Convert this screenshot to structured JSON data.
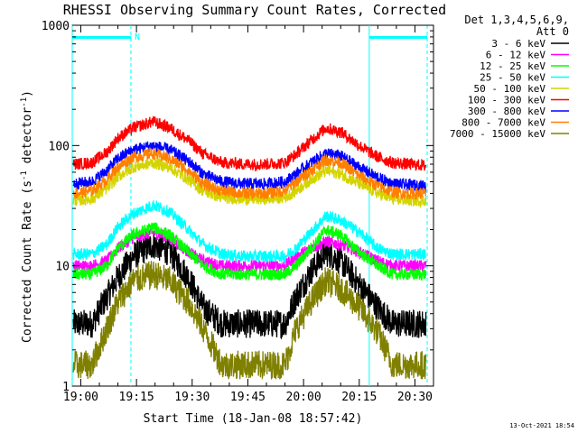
{
  "chart_data": {
    "type": "line",
    "title": "RHESSI Observing Summary Count Rates, Corrected",
    "xlabel": "Start Time (18-Jan-08 18:57:42)",
    "ylabel_main": "Corrected Count Rate (s",
    "ylabel_sup1": "-1",
    "ylabel_mid": " detector",
    "ylabel_sup2": "-1",
    "ylabel_end": ")",
    "x_ticks": [
      "19:00",
      "19:15",
      "19:30",
      "19:45",
      "20:00",
      "20:15",
      "20:30"
    ],
    "x_tick_minutes": [
      0,
      15,
      30,
      45,
      60,
      75,
      90
    ],
    "x_range_minutes": [
      -2.3,
      95
    ],
    "y_scale": "log",
    "y_range": [
      1,
      1000
    ],
    "y_ticks": [
      "1",
      "10",
      "100",
      "1000"
    ],
    "y_tick_values": [
      1,
      10,
      100,
      1000
    ],
    "legend_header": [
      "Det 1,3,4,5,6,9,",
      "Att 0"
    ],
    "legend_position": "right",
    "flag_label": "N",
    "flags": [
      {
        "start_min": -2.3,
        "end_min": 13.5,
        "color": "#00ffff"
      },
      {
        "start_min": 77.7,
        "end_min": 93.3,
        "color": "#00ffff"
      }
    ],
    "vertical_markers": [
      {
        "minute": -2.3,
        "style": "solid",
        "color": "#00ffff"
      },
      {
        "minute": 13.5,
        "style": "dashed",
        "color": "#00ffff"
      },
      {
        "minute": 77.7,
        "style": "solid",
        "color": "#00ffff"
      },
      {
        "minute": 93.3,
        "style": "dashed",
        "color": "#00ffff"
      }
    ],
    "series": [
      {
        "name": "3 - 6 keV",
        "color": "#000000",
        "peaks": [
          {
            "t": 19.5,
            "v": 15
          },
          {
            "t": 66,
            "v": 13
          }
        ],
        "values": [
          3.3,
          3.3,
          5.5,
          8,
          12,
          15,
          13,
          8,
          4.5,
          3.3,
          3.3,
          3.3,
          3.3,
          5.5,
          9,
          13,
          11,
          7,
          4.5,
          3.3,
          3.3,
          3.3
        ],
        "minutes": [
          -2,
          3,
          7,
          10,
          14,
          19.5,
          24,
          29,
          33,
          38,
          44,
          50,
          55,
          58,
          62,
          66,
          70,
          75,
          80,
          84,
          88,
          93
        ]
      },
      {
        "name": "6 - 12 keV",
        "color": "#ff00ff",
        "values": [
          10,
          10,
          11,
          14,
          17,
          19,
          17,
          13,
          11,
          10,
          10,
          10,
          10,
          12,
          14,
          16,
          15,
          13,
          11,
          10,
          10,
          10
        ],
        "minutes": [
          -2,
          3,
          7,
          10,
          14,
          19.5,
          24,
          29,
          33,
          38,
          44,
          50,
          55,
          58,
          62,
          66,
          70,
          75,
          80,
          84,
          88,
          93
        ]
      },
      {
        "name": "12 - 25 keV",
        "color": "#00ff00",
        "values": [
          8.5,
          8.5,
          10,
          14,
          18,
          21,
          18,
          13,
          10,
          8.5,
          8.5,
          8.5,
          8.5,
          10,
          14,
          20,
          18,
          13,
          10,
          8.5,
          8.5,
          8.5
        ],
        "minutes": [
          -2,
          3,
          7,
          10,
          14,
          19.5,
          24,
          29,
          33,
          38,
          44,
          50,
          55,
          58,
          62,
          66,
          70,
          75,
          80,
          84,
          88,
          93
        ]
      },
      {
        "name": "25 - 50 keV",
        "color": "#00ffff",
        "values": [
          12.5,
          12.5,
          15,
          21,
          27,
          32,
          28,
          20,
          15,
          12.5,
          12,
          12,
          12,
          14,
          19,
          26,
          24,
          19,
          14,
          12.5,
          12.5,
          12.5
        ],
        "minutes": [
          -2,
          3,
          7,
          10,
          14,
          19.5,
          24,
          29,
          33,
          38,
          44,
          50,
          55,
          58,
          62,
          66,
          70,
          75,
          80,
          84,
          88,
          93
        ]
      },
      {
        "name": "50 - 100 keV",
        "color": "#d4d400",
        "values": [
          35,
          36,
          44,
          55,
          66,
          72,
          66,
          52,
          42,
          37,
          36,
          36,
          37,
          42,
          52,
          62,
          58,
          48,
          40,
          36,
          35,
          35
        ],
        "minutes": [
          -2,
          3,
          7,
          10,
          14,
          19.5,
          24,
          29,
          33,
          38,
          44,
          50,
          55,
          58,
          62,
          66,
          70,
          75,
          80,
          84,
          88,
          93
        ]
      },
      {
        "name": "100 - 300 keV",
        "color": "#ff0000",
        "values": [
          70,
          72,
          88,
          115,
          140,
          158,
          140,
          110,
          85,
          72,
          70,
          70,
          72,
          85,
          110,
          140,
          130,
          100,
          80,
          72,
          70,
          68
        ],
        "minutes": [
          -2,
          3,
          7,
          10,
          14,
          19.5,
          24,
          29,
          33,
          38,
          44,
          50,
          55,
          58,
          62,
          66,
          70,
          75,
          80,
          84,
          88,
          93
        ]
      },
      {
        "name": "300 - 800 keV",
        "color": "#0000ff",
        "values": [
          48,
          50,
          62,
          78,
          92,
          100,
          92,
          74,
          58,
          50,
          48,
          48,
          50,
          58,
          72,
          86,
          82,
          66,
          54,
          48,
          47,
          46
        ],
        "minutes": [
          -2,
          3,
          7,
          10,
          14,
          19.5,
          24,
          29,
          33,
          38,
          44,
          50,
          55,
          58,
          62,
          66,
          70,
          75,
          80,
          84,
          88,
          93
        ]
      },
      {
        "name": "800 - 7000 keV",
        "color": "#ff8000",
        "values": [
          40,
          42,
          52,
          66,
          80,
          86,
          78,
          62,
          48,
          42,
          40,
          40,
          42,
          50,
          62,
          76,
          72,
          56,
          46,
          41,
          40,
          40
        ],
        "minutes": [
          -2,
          3,
          7,
          10,
          14,
          19.5,
          24,
          29,
          33,
          38,
          44,
          50,
          55,
          58,
          62,
          66,
          70,
          75,
          80,
          84,
          88,
          93
        ]
      },
      {
        "name": "7000 - 15000 keV",
        "color": "#808000",
        "values": [
          1.5,
          1.5,
          3,
          5,
          7.5,
          8.5,
          7.5,
          5,
          3,
          1.5,
          1.5,
          1.5,
          1.5,
          3,
          5,
          7.5,
          6.5,
          4.5,
          2.8,
          1.5,
          1.5,
          1.5
        ],
        "minutes": [
          -2,
          3,
          7,
          10,
          14,
          19.5,
          24,
          29,
          33,
          38,
          44,
          50,
          55,
          58,
          62,
          66,
          70,
          75,
          80,
          84,
          88,
          93
        ]
      }
    ]
  },
  "footer_timestamp": "13-Oct-2021 18:54"
}
